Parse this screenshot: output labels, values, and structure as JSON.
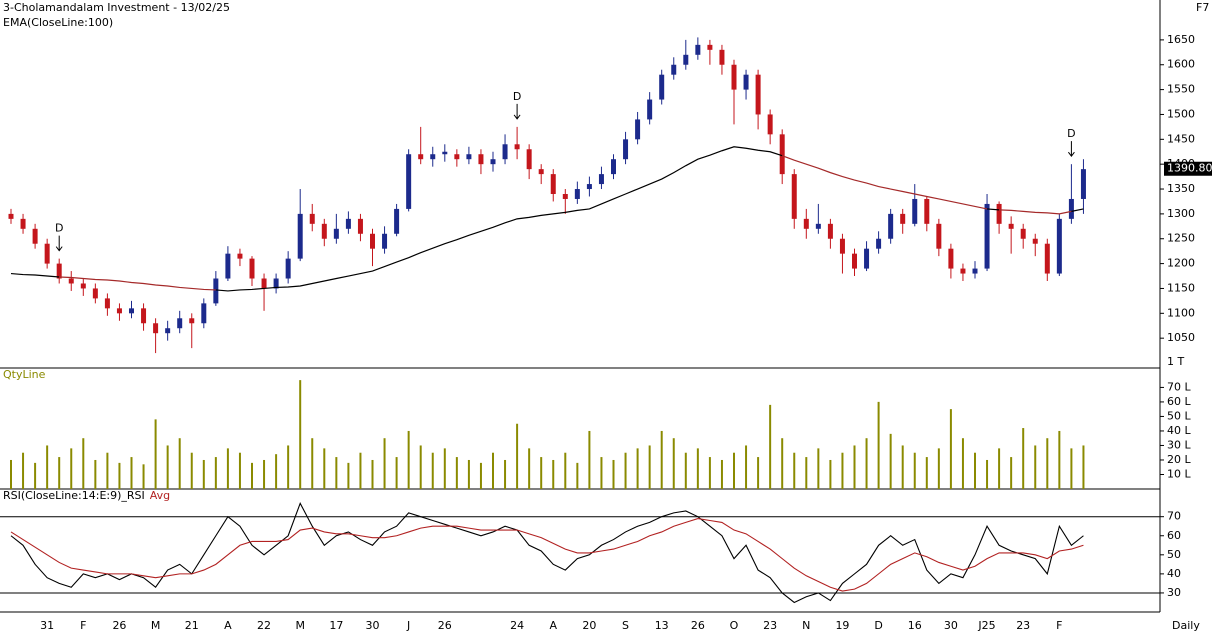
{
  "header": {
    "title": "3-Cholamandalam Investment - 13/02/25",
    "hotkey": "F7",
    "period": "Daily"
  },
  "chart_data": [
    {
      "type": "candlestick",
      "categories": [
        null,
        null,
        null,
        "31",
        null,
        null,
        "F",
        null,
        null,
        "26",
        null,
        null,
        "M",
        null,
        null,
        "21",
        null,
        null,
        "A",
        null,
        null,
        "22",
        null,
        null,
        "M",
        null,
        null,
        "17",
        null,
        null,
        "30",
        null,
        null,
        "J",
        null,
        null,
        "26",
        null,
        null,
        null,
        null,
        null,
        "24",
        null,
        null,
        "A",
        null,
        null,
        "20",
        null,
        null,
        "S",
        null,
        null,
        "13",
        null,
        null,
        "26",
        null,
        null,
        "O",
        null,
        null,
        "23",
        null,
        null,
        "N",
        null,
        null,
        "19",
        null,
        null,
        "D",
        null,
        null,
        "16",
        null,
        null,
        "30",
        null,
        null,
        "J25",
        null,
        null,
        "23",
        null,
        null,
        "F",
        null,
        null
      ],
      "open": [
        1300,
        1290,
        1270,
        1240,
        1200,
        1170,
        1160,
        1150,
        1130,
        1110,
        1100,
        1110,
        1080,
        1060,
        1070,
        1090,
        1080,
        1120,
        1170,
        1220,
        1210,
        1170,
        1150,
        1170,
        1210,
        1300,
        1280,
        1250,
        1270,
        1290,
        1260,
        1230,
        1260,
        1310,
        1420,
        1410,
        1420,
        1420,
        1410,
        1420,
        1400,
        1410,
        1440,
        1430,
        1390,
        1380,
        1340,
        1330,
        1350,
        1360,
        1380,
        1410,
        1450,
        1490,
        1530,
        1580,
        1600,
        1620,
        1640,
        1630,
        1600,
        1550,
        1580,
        1500,
        1460,
        1380,
        1290,
        1270,
        1280,
        1250,
        1220,
        1190,
        1230,
        1250,
        1300,
        1280,
        1330,
        1280,
        1230,
        1190,
        1180,
        1190,
        1320,
        1280,
        1270,
        1250,
        1240,
        1180,
        1290,
        1330
      ],
      "high": [
        1310,
        1300,
        1280,
        1250,
        1210,
        1185,
        1170,
        1160,
        1140,
        1120,
        1125,
        1120,
        1090,
        1085,
        1105,
        1100,
        1130,
        1185,
        1235,
        1230,
        1215,
        1180,
        1180,
        1225,
        1350,
        1320,
        1290,
        1300,
        1305,
        1300,
        1270,
        1275,
        1320,
        1430,
        1475,
        1435,
        1440,
        1430,
        1435,
        1430,
        1425,
        1460,
        1475,
        1440,
        1400,
        1390,
        1350,
        1365,
        1375,
        1395,
        1420,
        1465,
        1505,
        1545,
        1590,
        1615,
        1650,
        1655,
        1650,
        1640,
        1610,
        1590,
        1590,
        1510,
        1470,
        1390,
        1310,
        1320,
        1290,
        1260,
        1230,
        1245,
        1265,
        1310,
        1310,
        1360,
        1335,
        1290,
        1240,
        1200,
        1205,
        1340,
        1325,
        1295,
        1280,
        1260,
        1250,
        1300,
        1400,
        1410
      ],
      "low": [
        1280,
        1260,
        1230,
        1190,
        1160,
        1145,
        1135,
        1120,
        1095,
        1085,
        1090,
        1065,
        1020,
        1045,
        1060,
        1030,
        1070,
        1115,
        1165,
        1195,
        1155,
        1105,
        1140,
        1160,
        1205,
        1265,
        1235,
        1240,
        1260,
        1245,
        1195,
        1220,
        1255,
        1305,
        1400,
        1395,
        1405,
        1395,
        1400,
        1380,
        1385,
        1400,
        1410,
        1370,
        1360,
        1325,
        1300,
        1320,
        1335,
        1350,
        1370,
        1400,
        1440,
        1480,
        1520,
        1570,
        1590,
        1610,
        1600,
        1580,
        1480,
        1530,
        1470,
        1440,
        1360,
        1270,
        1250,
        1260,
        1230,
        1180,
        1175,
        1185,
        1220,
        1240,
        1260,
        1275,
        1265,
        1215,
        1170,
        1165,
        1170,
        1185,
        1260,
        1220,
        1230,
        1215,
        1165,
        1175,
        1280,
        1300
      ],
      "close": [
        1290,
        1270,
        1240,
        1200,
        1170,
        1160,
        1150,
        1130,
        1110,
        1100,
        1110,
        1080,
        1060,
        1070,
        1090,
        1080,
        1120,
        1170,
        1220,
        1210,
        1170,
        1150,
        1170,
        1210,
        1300,
        1280,
        1250,
        1270,
        1290,
        1260,
        1230,
        1260,
        1310,
        1420,
        1410,
        1420,
        1425,
        1410,
        1420,
        1400,
        1410,
        1440,
        1430,
        1390,
        1380,
        1340,
        1330,
        1350,
        1360,
        1380,
        1410,
        1450,
        1490,
        1530,
        1580,
        1600,
        1620,
        1640,
        1630,
        1600,
        1550,
        1580,
        1500,
        1460,
        1380,
        1290,
        1270,
        1280,
        1250,
        1220,
        1190,
        1230,
        1250,
        1300,
        1280,
        1330,
        1280,
        1230,
        1190,
        1180,
        1190,
        1320,
        1280,
        1270,
        1250,
        1240,
        1180,
        1290,
        1330,
        1390
      ],
      "up_color": "#1c2a8c",
      "down_color": "#c4161c",
      "ema": {
        "name": "EMA(CloseLine:100)",
        "color": "#000000",
        "below_color": "#a52a2a",
        "values": [
          1180,
          1178,
          1177,
          1175,
          1173,
          1172,
          1170,
          1168,
          1167,
          1165,
          1162,
          1160,
          1157,
          1155,
          1152,
          1150,
          1148,
          1147,
          1145,
          1147,
          1148,
          1150,
          1152,
          1153,
          1155,
          1160,
          1165,
          1170,
          1175,
          1180,
          1185,
          1194,
          1203,
          1212,
          1222,
          1231,
          1240,
          1248,
          1257,
          1265,
          1273,
          1282,
          1290,
          1293,
          1297,
          1300,
          1303,
          1307,
          1310,
          1320,
          1330,
          1340,
          1350,
          1360,
          1370,
          1383,
          1397,
          1410,
          1418,
          1427,
          1435,
          1432,
          1428,
          1425,
          1417,
          1408,
          1400,
          1392,
          1383,
          1375,
          1368,
          1362,
          1355,
          1350,
          1345,
          1340,
          1335,
          1330,
          1325,
          1320,
          1315,
          1310,
          1308,
          1307,
          1305,
          1303,
          1302,
          1300,
          1305,
          1310
        ]
      },
      "ylim": [
        990,
        1690
      ],
      "yticks": [
        1050,
        1100,
        1150,
        1200,
        1250,
        1300,
        1350,
        1400,
        1450,
        1500,
        1550,
        1600,
        1650
      ],
      "y_unit_label": "1 T",
      "last_value": 1390.8,
      "last_value_label": "1390.80",
      "annotations": [
        {
          "text": "D",
          "index": 4
        },
        {
          "text": "D",
          "index": 42
        },
        {
          "text": "D",
          "index": 88
        }
      ]
    },
    {
      "type": "bar",
      "title": "QtyLine",
      "color": "#8a8a00",
      "values": [
        20,
        25,
        18,
        30,
        22,
        28,
        35,
        20,
        25,
        18,
        22,
        17,
        48,
        30,
        35,
        25,
        20,
        22,
        28,
        25,
        18,
        20,
        24,
        30,
        75,
        35,
        28,
        22,
        18,
        25,
        20,
        35,
        22,
        40,
        30,
        25,
        28,
        22,
        20,
        18,
        25,
        20,
        45,
        28,
        22,
        20,
        25,
        18,
        40,
        22,
        20,
        25,
        28,
        30,
        40,
        35,
        25,
        28,
        22,
        20,
        25,
        30,
        22,
        58,
        35,
        25,
        22,
        28,
        20,
        25,
        30,
        35,
        60,
        38,
        30,
        25,
        22,
        28,
        55,
        35,
        25,
        20,
        28,
        22,
        42,
        30,
        35,
        40,
        28,
        30
      ],
      "ylim": [
        0,
        82
      ],
      "yticks": [
        {
          "value": 10,
          "label": "10 L"
        },
        {
          "value": 20,
          "label": "20 L"
        },
        {
          "value": 30,
          "label": "30 L"
        },
        {
          "value": 40,
          "label": "40 L"
        },
        {
          "value": 50,
          "label": "50 L"
        },
        {
          "value": 60,
          "label": "60 L"
        },
        {
          "value": 70,
          "label": "70 L"
        }
      ]
    },
    {
      "type": "line",
      "series": [
        {
          "name": "RSI(CloseLine:14:E:9)_RSI",
          "color": "#000000",
          "values": [
            60,
            55,
            45,
            38,
            35,
            33,
            40,
            38,
            40,
            37,
            40,
            38,
            33,
            42,
            45,
            40,
            50,
            60,
            70,
            65,
            55,
            50,
            55,
            60,
            77,
            65,
            55,
            60,
            62,
            58,
            55,
            62,
            65,
            72,
            70,
            68,
            66,
            64,
            62,
            60,
            62,
            65,
            63,
            55,
            52,
            45,
            42,
            48,
            50,
            55,
            58,
            62,
            65,
            67,
            70,
            72,
            73,
            70,
            65,
            60,
            48,
            55,
            42,
            38,
            30,
            25,
            28,
            30,
            26,
            35,
            40,
            45,
            55,
            60,
            55,
            58,
            42,
            35,
            40,
            38,
            50,
            65,
            55,
            52,
            50,
            48,
            40,
            65,
            55,
            60
          ]
        },
        {
          "name": "Avg",
          "color": "#b22222",
          "values": [
            62,
            58,
            54,
            50,
            46,
            43,
            42,
            41,
            40,
            40,
            40,
            39,
            38,
            39,
            40,
            40,
            42,
            45,
            50,
            55,
            57,
            57,
            57,
            58,
            63,
            64,
            62,
            61,
            61,
            60,
            59,
            59,
            60,
            62,
            64,
            65,
            65,
            65,
            64,
            63,
            63,
            63,
            63,
            61,
            59,
            56,
            53,
            51,
            51,
            52,
            53,
            55,
            57,
            60,
            62,
            65,
            67,
            69,
            68,
            67,
            63,
            61,
            57,
            53,
            48,
            43,
            39,
            36,
            33,
            31,
            32,
            35,
            40,
            45,
            48,
            51,
            49,
            46,
            44,
            42,
            44,
            48,
            51,
            51,
            51,
            50,
            48,
            52,
            53,
            55
          ]
        }
      ],
      "ylim": [
        20,
        84
      ],
      "yticks": [
        30,
        40,
        50,
        60,
        70
      ],
      "bands": [
        30,
        70
      ]
    }
  ]
}
